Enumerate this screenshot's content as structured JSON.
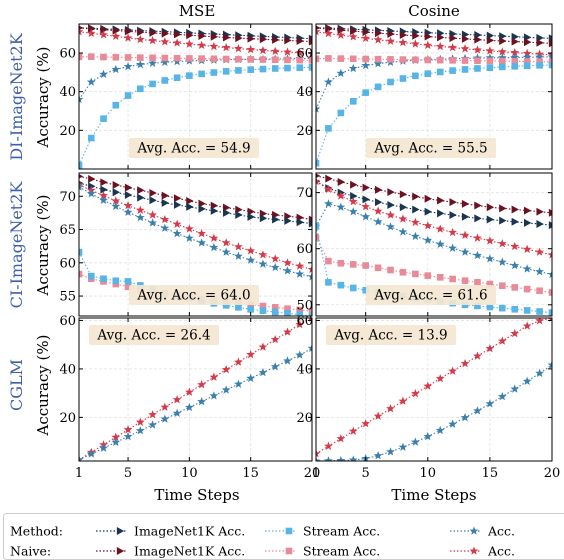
{
  "colors": {
    "method_imagenet": "#1a3550",
    "method_stream": "#56b4e6",
    "method_acc": "#3b7fad",
    "naive_imagenet": "#6b1222",
    "naive_stream": "#e88a98",
    "naive_acc": "#d43a4a",
    "annotation_bg": "#f4e6d0",
    "row_label": "#3b5fa8"
  },
  "labels": {
    "col_titles": [
      "MSE",
      "Cosine"
    ],
    "row_labels": [
      "DI-ImageNet2K",
      "CI-ImageNet2K",
      "CGLM"
    ],
    "ylabel": "Accuracy (%)",
    "xlabel": "Time Steps"
  },
  "legend": {
    "rows": [
      {
        "group": "Method:",
        "entries": [
          "ImageNet1K Acc.",
          "Stream Acc.",
          "Acc."
        ]
      },
      {
        "group": "Naive:",
        "entries": [
          "ImageNet1K Acc.",
          "Stream Acc.",
          "Acc."
        ]
      }
    ]
  },
  "chart_data": [
    {
      "type": "line",
      "panel": "DI-ImageNet2K / MSE",
      "x": [
        1,
        2,
        3,
        4,
        5,
        6,
        7,
        8,
        9,
        10,
        11,
        12,
        13,
        14,
        15,
        16,
        17,
        18,
        19,
        20
      ],
      "xlim": [
        1,
        20
      ],
      "ylim": [
        0,
        75
      ],
      "xticks": [
        1,
        5,
        10,
        15,
        20
      ],
      "yticks": [
        20,
        40,
        60
      ],
      "annotation": "Avg. Acc. = 54.9",
      "series": [
        {
          "key": "method_imagenet",
          "values": [
            73,
            72.8,
            72.5,
            72.2,
            71.9,
            71.6,
            71.3,
            71,
            70.7,
            70.4,
            70.1,
            69.8,
            69.5,
            69.2,
            68.9,
            68.6,
            68.3,
            68,
            67.7,
            67.4
          ]
        },
        {
          "key": "naive_imagenet",
          "values": [
            73,
            72.5,
            72,
            71.6,
            71.2,
            70.8,
            70.4,
            70,
            69.6,
            69.2,
            68.8,
            68.4,
            68,
            67.7,
            67.4,
            67.1,
            66.8,
            66.5,
            66.2,
            65.9
          ]
        },
        {
          "key": "naive_acc",
          "values": [
            71,
            70.2,
            69.4,
            68.6,
            67.8,
            67,
            66.4,
            65.8,
            65.2,
            64.6,
            64,
            63.4,
            62.8,
            62.3,
            61.8,
            61.3,
            60.9,
            60.5,
            60.1,
            59.7
          ]
        },
        {
          "key": "method_acc",
          "values": [
            36,
            45,
            49,
            51.5,
            53,
            54,
            54.7,
            55.2,
            55.6,
            55.9,
            56.1,
            56.3,
            56.5,
            56.6,
            56.7,
            56.8,
            56.9,
            57,
            57.1,
            57.2
          ]
        },
        {
          "key": "naive_stream",
          "values": [
            58,
            58.1,
            57.9,
            57.8,
            57.7,
            57.6,
            57.5,
            57.4,
            57.3,
            57.2,
            57.1,
            57,
            56.9,
            56.8,
            56.7,
            56.6,
            56.5,
            56.4,
            56.3,
            56.2
          ]
        },
        {
          "key": "method_stream",
          "values": [
            2,
            16,
            26,
            33,
            38,
            41.5,
            44,
            45.8,
            47.2,
            48.3,
            49.2,
            49.9,
            50.5,
            51,
            51.4,
            51.7,
            52,
            52.2,
            52.4,
            52.6
          ]
        }
      ]
    },
    {
      "type": "line",
      "panel": "DI-ImageNet2K / Cosine",
      "x": [
        1,
        2,
        3,
        4,
        5,
        6,
        7,
        8,
        9,
        10,
        11,
        12,
        13,
        14,
        15,
        16,
        17,
        18,
        19,
        20
      ],
      "xlim": [
        1,
        20
      ],
      "ylim": [
        0,
        75
      ],
      "xticks": [
        1,
        5,
        10,
        15,
        20
      ],
      "yticks": [
        20,
        40,
        60
      ],
      "annotation": "Avg. Acc. = 55.5",
      "series": [
        {
          "key": "method_imagenet",
          "values": [
            73,
            72.9,
            72.6,
            72.3,
            72,
            71.7,
            71.4,
            71.1,
            70.8,
            70.5,
            70.2,
            69.9,
            69.6,
            69.3,
            69,
            68.7,
            68.4,
            68.1,
            67.8,
            67.6
          ]
        },
        {
          "key": "naive_imagenet",
          "values": [
            73,
            72.4,
            71.8,
            71.3,
            70.8,
            70.3,
            69.8,
            69.3,
            68.9,
            68.5,
            68.1,
            67.7,
            67.3,
            66.9,
            66.5,
            66.2,
            65.9,
            65.6,
            65.3,
            65
          ]
        },
        {
          "key": "naive_acc",
          "values": [
            71,
            70.1,
            69.2,
            68.4,
            67.6,
            66.8,
            66.1,
            65.4,
            64.7,
            64,
            63.4,
            62.8,
            62.2,
            61.6,
            61.1,
            60.6,
            60.2,
            59.8,
            59.4,
            59
          ]
        },
        {
          "key": "method_acc",
          "values": [
            31,
            45,
            49.5,
            52,
            53.5,
            54.5,
            55.2,
            55.8,
            56.2,
            56.5,
            56.8,
            57,
            57.2,
            57.4,
            57.5,
            57.6,
            57.7,
            57.8,
            57.9,
            58
          ]
        },
        {
          "key": "naive_stream",
          "values": [
            57,
            57.2,
            57.1,
            57,
            56.9,
            56.8,
            56.7,
            56.6,
            56.5,
            56.4,
            56.3,
            56.2,
            56.1,
            56,
            55.9,
            55.8,
            55.7,
            55.6,
            55.5,
            55.4
          ]
        },
        {
          "key": "method_stream",
          "values": [
            3,
            21,
            29,
            35,
            39.5,
            42.5,
            45,
            46.8,
            48.2,
            49.3,
            50.2,
            50.9,
            51.5,
            52,
            52.4,
            52.8,
            53.1,
            53.4,
            53.6,
            53.8
          ]
        }
      ]
    },
    {
      "type": "line",
      "panel": "CI-ImageNet2K / MSE",
      "x": [
        1,
        2,
        3,
        4,
        5,
        6,
        7,
        8,
        9,
        10,
        11,
        12,
        13,
        14,
        15,
        16,
        17,
        18,
        19,
        20
      ],
      "xlim": [
        1,
        20
      ],
      "ylim": [
        52,
        73.5
      ],
      "xticks": [
        1,
        5,
        10,
        15,
        20
      ],
      "yticks": [
        55,
        60,
        65,
        70
      ],
      "annotation": "Avg. Acc. = 64.0",
      "series": [
        {
          "key": "naive_imagenet",
          "values": [
            73,
            72.6,
            72.1,
            71.7,
            71.3,
            70.9,
            70.5,
            70.1,
            69.7,
            69.3,
            68.9,
            68.6,
            68.3,
            68,
            67.7,
            67.4,
            67.2,
            67,
            66.8,
            66.5
          ]
        },
        {
          "key": "method_imagenet",
          "values": [
            72,
            71.5,
            71,
            70.6,
            70.2,
            69.8,
            69.4,
            69,
            68.7,
            68.4,
            68.1,
            67.8,
            67.5,
            67.2,
            66.9,
            66.7,
            66.5,
            66.3,
            66.1,
            65.9
          ]
        },
        {
          "key": "naive_acc",
          "values": [
            71.7,
            70.9,
            70.1,
            69.3,
            68.6,
            67.9,
            67.2,
            66.5,
            65.8,
            65.1,
            64.4,
            63.7,
            63,
            62.4,
            61.8,
            61.2,
            60.6,
            60,
            59.5,
            59
          ]
        },
        {
          "key": "method_acc",
          "values": [
            71.4,
            70.4,
            69.4,
            68.5,
            67.6,
            66.8,
            66,
            65.2,
            64.4,
            63.7,
            63,
            62.3,
            61.6,
            61,
            60.4,
            59.8,
            59.3,
            58.8,
            58.3,
            57.9
          ]
        },
        {
          "key": "naive_stream",
          "values": [
            58.3,
            57.6,
            57.2,
            56.8,
            56.4,
            56,
            55.7,
            55.4,
            55.1,
            54.8,
            54.5,
            54.3,
            54.1,
            53.9,
            53.7,
            53.5,
            53.3,
            53.1,
            52.9,
            52.7
          ]
        },
        {
          "key": "method_stream",
          "values": [
            61.6,
            58,
            57.6,
            57.3,
            57.2,
            56.6,
            56,
            55.4,
            55,
            54.7,
            54.3,
            53.9,
            53.6,
            53.3,
            53,
            52.8,
            52.6,
            52.4,
            52.2,
            52
          ]
        }
      ]
    },
    {
      "type": "line",
      "panel": "CI-ImageNet2K / Cosine",
      "x": [
        1,
        2,
        3,
        4,
        5,
        6,
        7,
        8,
        9,
        10,
        11,
        12,
        13,
        14,
        15,
        16,
        17,
        18,
        19,
        20
      ],
      "xlim": [
        1,
        20
      ],
      "ylim": [
        48,
        73.5
      ],
      "xticks": [
        1,
        5,
        10,
        15,
        20
      ],
      "yticks": [
        50,
        60,
        70
      ],
      "annotation": "Avg. Acc. = 61.6",
      "series": [
        {
          "key": "naive_imagenet",
          "values": [
            73,
            72.5,
            71.9,
            71.4,
            70.9,
            70.5,
            70.1,
            69.7,
            69.3,
            68.9,
            68.6,
            68.3,
            68,
            67.7,
            67.4,
            67.2,
            67,
            66.8,
            66.6,
            66.4
          ]
        },
        {
          "key": "method_imagenet",
          "values": [
            72,
            70.8,
            70,
            69.4,
            68.8,
            68.3,
            67.8,
            67.4,
            67,
            66.6,
            66.3,
            66,
            65.7,
            65.4,
            65.2,
            65,
            64.8,
            64.6,
            64.4,
            64.2
          ]
        },
        {
          "key": "naive_acc",
          "values": [
            72,
            70.6,
            69.4,
            68.4,
            67.5,
            66.7,
            66,
            65.3,
            64.7,
            64.1,
            63.5,
            62.9,
            62.4,
            61.9,
            61.4,
            60.9,
            60.4,
            59.9,
            59.4,
            58.9
          ]
        },
        {
          "key": "method_acc",
          "values": [
            64,
            68,
            67.4,
            66.6,
            65.7,
            64.8,
            63.9,
            63,
            62.2,
            61.5,
            60.8,
            60.1,
            59.4,
            58.8,
            58.2,
            57.6,
            57,
            56.4,
            55.9,
            55.4
          ]
        },
        {
          "key": "naive_stream",
          "values": [
            62,
            57.8,
            57.4,
            57.2,
            57,
            56.6,
            56.2,
            55.8,
            55.5,
            55.2,
            54.9,
            54.6,
            54.3,
            54,
            53.7,
            53.4,
            53.1,
            52.8,
            52.5,
            52.2
          ]
        },
        {
          "key": "method_stream",
          "values": [
            64,
            54,
            53.5,
            53,
            52.6,
            52.2,
            51.8,
            51.5,
            51.2,
            50.9,
            50.6,
            50.3,
            50,
            49.8,
            49.6,
            49.4,
            49.2,
            49,
            48.8,
            48.6
          ]
        }
      ]
    },
    {
      "type": "line",
      "panel": "CGLM / MSE",
      "x": [
        1,
        2,
        3,
        4,
        5,
        6,
        7,
        8,
        9,
        10,
        11,
        12,
        13,
        14,
        15,
        16,
        17,
        18,
        19,
        20
      ],
      "xlim": [
        1,
        20
      ],
      "ylim": [
        2,
        61
      ],
      "xticks": [
        1,
        5,
        10,
        15,
        20
      ],
      "yticks": [
        20,
        40,
        60
      ],
      "annotation": "Avg. Acc. = 26.4",
      "series": [
        {
          "key": "naive_acc",
          "values": [
            2.5,
            5.6,
            8.7,
            11.8,
            14.9,
            18,
            21.1,
            24.2,
            27.3,
            30.4,
            33.5,
            36.6,
            39.7,
            42.8,
            45.9,
            49,
            52.1,
            55.2,
            58.3,
            61
          ]
        },
        {
          "key": "method_acc",
          "values": [
            2.5,
            4.9,
            7.3,
            9.7,
            12.1,
            14.5,
            16.9,
            19.3,
            21.7,
            24.1,
            26.5,
            28.9,
            31.3,
            33.7,
            36.1,
            38.5,
            40.9,
            43.3,
            45.7,
            48.5
          ]
        }
      ]
    },
    {
      "type": "line",
      "panel": "CGLM / Cosine",
      "x": [
        1,
        2,
        3,
        4,
        5,
        6,
        7,
        8,
        9,
        10,
        11,
        12,
        13,
        14,
        15,
        16,
        17,
        18,
        19,
        20
      ],
      "xlim": [
        1,
        20
      ],
      "ylim": [
        2,
        61
      ],
      "xticks": [
        1,
        5,
        10,
        15,
        20
      ],
      "yticks": [
        20,
        40,
        60
      ],
      "annotation": "Avg. Acc. = 13.9",
      "series": [
        {
          "key": "naive_acc",
          "values": [
            5,
            8.1,
            11.2,
            14.3,
            17.4,
            20.5,
            23.6,
            26.7,
            29.8,
            32.9,
            36,
            39.1,
            42.2,
            45.3,
            48.4,
            51.5,
            54.6,
            57.7,
            59.9,
            61
          ]
        },
        {
          "key": "method_acc",
          "values": [
            2,
            2.1,
            2.2,
            2.4,
            3,
            4.2,
            5.8,
            7.7,
            9.8,
            12.1,
            14.6,
            17.2,
            19.9,
            22.7,
            25.6,
            28.6,
            31.7,
            34.9,
            38.2,
            41.6
          ]
        }
      ]
    }
  ]
}
